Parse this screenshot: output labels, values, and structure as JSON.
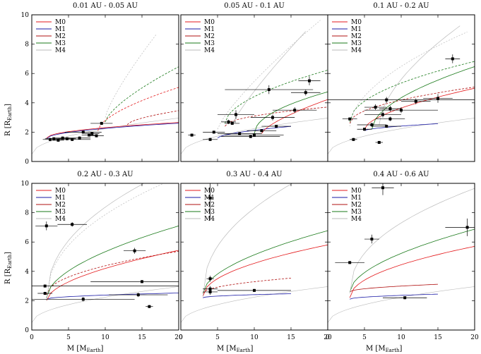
{
  "figure": {
    "ylabel": "R [R",
    "ylabel_sub": "Earth",
    "ylabel_close": "]",
    "xlabel": "M [M",
    "xlabel_sub": "Earth",
    "xlabel_close": "]"
  },
  "legend_entries": [
    {
      "label": "M0",
      "color": "#e41a1c"
    },
    {
      "label": "M1",
      "color": "#1a1aa6"
    },
    {
      "label": "M2",
      "color": "#b01010"
    },
    {
      "label": "M3",
      "color": "#1a7a1a"
    },
    {
      "label": "M4",
      "color": "#bbbbbb"
    }
  ],
  "chart_data": [
    {
      "type": "scatter",
      "title": "0.01 AU - 0.05 AU",
      "xlim": [
        0,
        20
      ],
      "ylim": [
        0,
        10
      ],
      "xticks": [
        0,
        5,
        10,
        15,
        20
      ],
      "yticks": [
        0,
        2,
        4,
        6,
        8,
        10
      ],
      "points": [
        {
          "x": 2.5,
          "y": 1.5,
          "xerr": 1.0,
          "yerr": 0.1
        },
        {
          "x": 3.0,
          "y": 1.55,
          "xerr": 1.2,
          "yerr": 0.1
        },
        {
          "x": 3.6,
          "y": 1.45,
          "xerr": 0.8,
          "yerr": 0.1
        },
        {
          "x": 4.2,
          "y": 1.6,
          "xerr": 1.0,
          "yerr": 0.1
        },
        {
          "x": 4.8,
          "y": 1.55,
          "xerr": 1.2,
          "yerr": 0.1
        },
        {
          "x": 6.5,
          "y": 1.6,
          "xerr": 1.5,
          "yerr": 0.1
        },
        {
          "x": 7.0,
          "y": 2.0,
          "xerr": 2.5,
          "yerr": 0.1
        },
        {
          "x": 7.8,
          "y": 1.8,
          "xerr": 1.0,
          "yerr": 0.1
        },
        {
          "x": 8.2,
          "y": 1.9,
          "xerr": 1.0,
          "yerr": 0.1
        },
        {
          "x": 8.8,
          "y": 1.75,
          "xerr": 1.0,
          "yerr": 0.1
        },
        {
          "x": 9.5,
          "y": 2.6,
          "xerr": 1.5,
          "yerr": 0.1
        },
        {
          "x": 5.5,
          "y": 1.5,
          "xerr": 2.5,
          "yerr": 0.1
        }
      ]
    },
    {
      "type": "scatter",
      "title": "0.05 AU - 0.1 AU",
      "xlim": [
        0,
        20
      ],
      "ylim": [
        0,
        10
      ],
      "xticks": [
        0,
        5,
        10,
        15,
        20
      ],
      "yticks": [
        0,
        2,
        4,
        6,
        8,
        10
      ],
      "points": [
        {
          "x": 1.5,
          "y": 1.8,
          "xerr": 0.5,
          "yerr": 0.1
        },
        {
          "x": 4.0,
          "y": 1.5,
          "xerr": 1.0,
          "yerr": 0.1
        },
        {
          "x": 4.5,
          "y": 2.0,
          "xerr": 1.5,
          "yerr": 0.1
        },
        {
          "x": 6.5,
          "y": 2.7,
          "xerr": 1.0,
          "yerr": 0.15
        },
        {
          "x": 7.5,
          "y": 3.2,
          "xerr": 2.5,
          "yerr": 0.3
        },
        {
          "x": 8.0,
          "y": 1.9,
          "xerr": 3.0,
          "yerr": 0.1
        },
        {
          "x": 10.0,
          "y": 1.8,
          "xerr": 4.0,
          "yerr": 0.1
        },
        {
          "x": 11.0,
          "y": 2.1,
          "xerr": 2.0,
          "yerr": 0.1
        },
        {
          "x": 12.0,
          "y": 4.9,
          "xerr": 6.0,
          "yerr": 0.3
        },
        {
          "x": 12.5,
          "y": 3.0,
          "xerr": 3.0,
          "yerr": 0.2
        },
        {
          "x": 13.0,
          "y": 2.4,
          "xerr": 2.0,
          "yerr": 0.1
        },
        {
          "x": 15.5,
          "y": 3.5,
          "xerr": 3.0,
          "yerr": 0.2
        },
        {
          "x": 17.0,
          "y": 4.7,
          "xerr": 2.0,
          "yerr": 0.2
        },
        {
          "x": 17.5,
          "y": 5.5,
          "xerr": 1.5,
          "yerr": 0.3
        },
        {
          "x": 9.5,
          "y": 1.7,
          "xerr": 4.0,
          "yerr": 0.1
        },
        {
          "x": 7.0,
          "y": 2.6,
          "xerr": 1.0,
          "yerr": 0.1
        }
      ]
    },
    {
      "type": "scatter",
      "title": "0.1 AU - 0.2 AU",
      "xlim": [
        0,
        20
      ],
      "ylim": [
        0,
        10
      ],
      "xticks": [
        0,
        5,
        10,
        15,
        20
      ],
      "yticks": [
        0,
        2,
        4,
        6,
        8,
        10
      ],
      "points": [
        {
          "x": 3.0,
          "y": 2.9,
          "xerr": 1.0,
          "yerr": 0.1
        },
        {
          "x": 3.5,
          "y": 1.5,
          "xerr": 0.5,
          "yerr": 0.1
        },
        {
          "x": 5.0,
          "y": 2.2,
          "xerr": 1.0,
          "yerr": 0.1
        },
        {
          "x": 6.0,
          "y": 2.5,
          "xerr": 2.0,
          "yerr": 0.15
        },
        {
          "x": 6.5,
          "y": 3.7,
          "xerr": 1.5,
          "yerr": 0.2
        },
        {
          "x": 7.0,
          "y": 1.3,
          "xerr": 0.5,
          "yerr": 0.1
        },
        {
          "x": 7.5,
          "y": 3.2,
          "xerr": 2.5,
          "yerr": 0.2
        },
        {
          "x": 8.0,
          "y": 4.2,
          "xerr": 12.0,
          "yerr": 0.2
        },
        {
          "x": 8.5,
          "y": 3.6,
          "xerr": 1.5,
          "yerr": 0.2
        },
        {
          "x": 8.5,
          "y": 2.9,
          "xerr": 2.0,
          "yerr": 0.15
        },
        {
          "x": 10.0,
          "y": 3.5,
          "xerr": 5.0,
          "yerr": 0.2
        },
        {
          "x": 12.0,
          "y": 4.1,
          "xerr": 2.0,
          "yerr": 0.2
        },
        {
          "x": 15.0,
          "y": 4.3,
          "xerr": 2.0,
          "yerr": 0.3
        },
        {
          "x": 17.0,
          "y": 7.0,
          "xerr": 1.0,
          "yerr": 0.3
        },
        {
          "x": 8.0,
          "y": 2.4,
          "xerr": 2.0,
          "yerr": 0.1
        }
      ]
    },
    {
      "type": "scatter",
      "title": "0.2 AU - 0.3 AU",
      "xlim": [
        0,
        20
      ],
      "ylim": [
        0,
        10
      ],
      "xticks": [
        0,
        5,
        10,
        15,
        20
      ],
      "yticks": [
        0,
        2,
        4,
        6,
        8,
        10
      ],
      "points": [
        {
          "x": 1.8,
          "y": 3.0,
          "xerr": 25.0,
          "yerr": 0.1
        },
        {
          "x": 1.8,
          "y": 2.5,
          "xerr": 1.0,
          "yerr": 0.1
        },
        {
          "x": 2.0,
          "y": 7.1,
          "xerr": 1.5,
          "yerr": 0.3
        },
        {
          "x": 5.5,
          "y": 7.2,
          "xerr": 2.0,
          "yerr": 0.15
        },
        {
          "x": 7.0,
          "y": 2.1,
          "xerr": 7.0,
          "yerr": 0.15
        },
        {
          "x": 14.0,
          "y": 5.4,
          "xerr": 1.5,
          "yerr": 0.2
        },
        {
          "x": 14.5,
          "y": 2.4,
          "xerr": 4.0,
          "yerr": 0.15
        },
        {
          "x": 15.0,
          "y": 3.3,
          "xerr": 7.0,
          "yerr": 0.1
        },
        {
          "x": 16.0,
          "y": 1.6,
          "xerr": 0.5,
          "yerr": 0.1
        }
      ]
    },
    {
      "type": "scatter",
      "title": "0.3 AU - 0.4 AU",
      "xlim": [
        0,
        20
      ],
      "ylim": [
        0,
        10
      ],
      "xticks": [
        0,
        5,
        10,
        15,
        20
      ],
      "yticks": [
        0,
        2,
        4,
        6,
        8,
        10
      ],
      "points": [
        {
          "x": 4.0,
          "y": 3.5,
          "xerr": 0.5,
          "yerr": 0.2
        },
        {
          "x": 4.0,
          "y": 2.6,
          "xerr": 1.0,
          "yerr": 0.2
        },
        {
          "x": 4.0,
          "y": 2.8,
          "xerr": 1.0,
          "yerr": 0.2
        },
        {
          "x": 10.0,
          "y": 2.7,
          "xerr": 5.0,
          "yerr": 0.1
        },
        {
          "x": 4.0,
          "y": 9.0,
          "xerr": 0.5,
          "yerr": 1.5
        }
      ]
    },
    {
      "type": "scatter",
      "title": "0.4 AU - 0.6 AU",
      "xlim": [
        0,
        20
      ],
      "ylim": [
        0,
        10
      ],
      "xticks": [
        0,
        5,
        10,
        15,
        20
      ],
      "yticks": [
        0,
        2,
        4,
        6,
        8,
        10
      ],
      "points": [
        {
          "x": 3.0,
          "y": 4.6,
          "xerr": 2.0,
          "yerr": 0.1
        },
        {
          "x": 6.0,
          "y": 6.2,
          "xerr": 1.0,
          "yerr": 0.3
        },
        {
          "x": 7.5,
          "y": 9.7,
          "xerr": 1.5,
          "yerr": 0.5
        },
        {
          "x": 10.5,
          "y": 2.2,
          "xerr": 3.0,
          "yerr": 0.1
        },
        {
          "x": 19.0,
          "y": 7.0,
          "xerr": 3.0,
          "yerr": 0.6
        }
      ]
    }
  ]
}
